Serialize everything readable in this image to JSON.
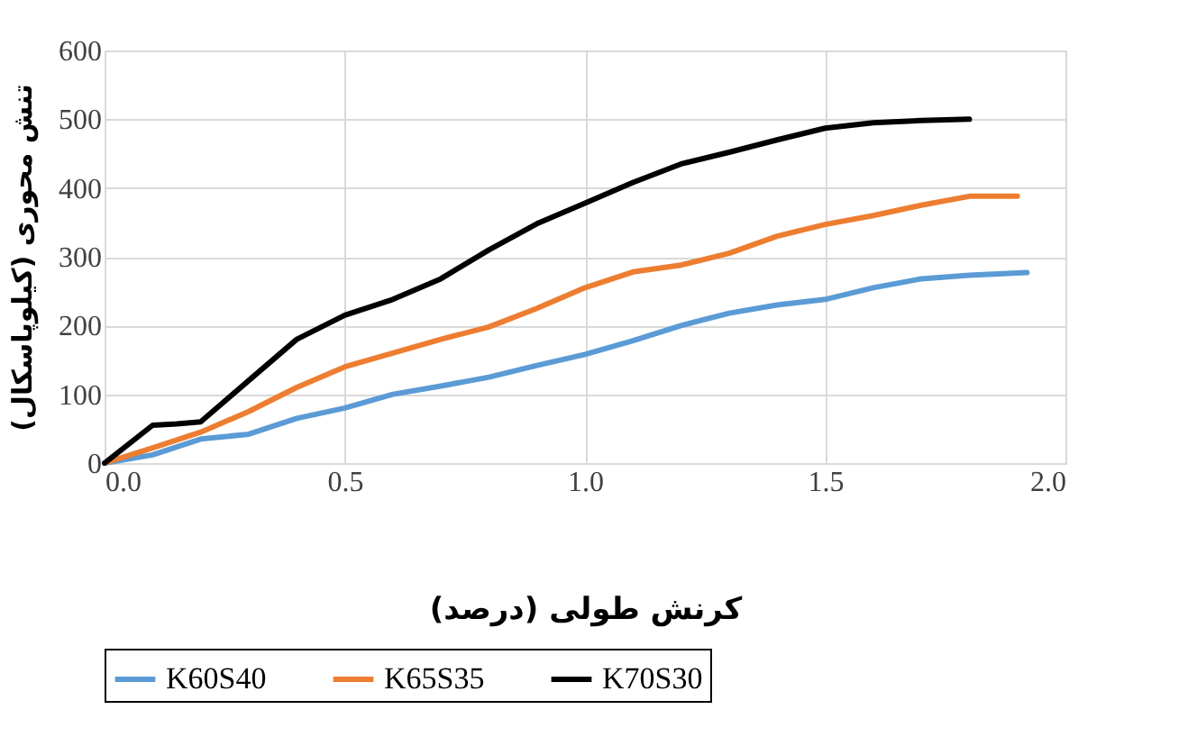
{
  "chart_data": {
    "type": "line",
    "xlabel": "کرنش طولی (درصد)",
    "ylabel": "تنش محوری (کیلوپاسکال)",
    "xlim": [
      0,
      2
    ],
    "xticks": [
      {
        "value": 0,
        "label": "0.0"
      },
      {
        "value": 0.5,
        "label": "0.5"
      },
      {
        "value": 1,
        "label": "1.0"
      },
      {
        "value": 1.5,
        "label": "1.5"
      },
      {
        "value": 2,
        "label": "2.0"
      }
    ],
    "ylim": [
      0,
      600
    ],
    "yticks": [
      0,
      100,
      200,
      300,
      400,
      500,
      600
    ],
    "grid": true,
    "legend": "bottom",
    "marker": "none",
    "line_style": "solid",
    "series": [
      {
        "name": "K60S40",
        "color": "#5b9bd5",
        "x": [
          0,
          0.1,
          0.2,
          0.3,
          0.4,
          0.5,
          0.6,
          0.7,
          0.8,
          0.9,
          1.0,
          1.1,
          1.2,
          1.3,
          1.4,
          1.5,
          1.6,
          1.7,
          1.8,
          1.92
        ],
        "values": [
          0,
          12,
          35,
          42,
          65,
          80,
          100,
          112,
          125,
          142,
          158,
          178,
          200,
          218,
          230,
          238,
          255,
          268,
          273,
          277
        ]
      },
      {
        "name": "K65S35",
        "color": "#ed7d31",
        "x": [
          0,
          0.1,
          0.2,
          0.3,
          0.4,
          0.5,
          0.6,
          0.7,
          0.8,
          0.9,
          1.0,
          1.1,
          1.2,
          1.3,
          1.4,
          1.5,
          1.6,
          1.7,
          1.8,
          1.9
        ],
        "values": [
          0,
          22,
          45,
          75,
          110,
          140,
          160,
          180,
          198,
          225,
          255,
          278,
          288,
          305,
          330,
          347,
          360,
          375,
          388,
          388
        ]
      },
      {
        "name": "K70S30",
        "color": "#000000",
        "x": [
          0,
          0.1,
          0.15,
          0.2,
          0.3,
          0.4,
          0.5,
          0.6,
          0.7,
          0.8,
          0.9,
          1.0,
          1.1,
          1.2,
          1.3,
          1.4,
          1.5,
          1.6,
          1.7,
          1.8
        ],
        "values": [
          0,
          55,
          57,
          60,
          120,
          180,
          215,
          238,
          268,
          310,
          348,
          378,
          408,
          435,
          452,
          470,
          487,
          495,
          498,
          500
        ]
      }
    ]
  }
}
